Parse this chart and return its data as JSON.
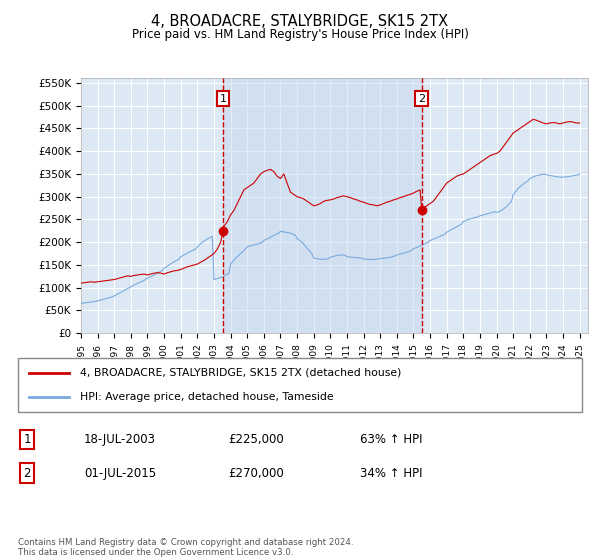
{
  "title": "4, BROADACRE, STALYBRIDGE, SK15 2TX",
  "subtitle": "Price paid vs. HM Land Registry's House Price Index (HPI)",
  "ylim": [
    0,
    560000
  ],
  "yticks": [
    0,
    50000,
    100000,
    150000,
    200000,
    250000,
    300000,
    350000,
    400000,
    450000,
    500000,
    550000
  ],
  "ytick_labels": [
    "£0",
    "£50K",
    "£100K",
    "£150K",
    "£200K",
    "£250K",
    "£300K",
    "£350K",
    "£400K",
    "£450K",
    "£500K",
    "£550K"
  ],
  "xlim_start": 1995.0,
  "xlim_end": 2025.5,
  "background_color": "#ffffff",
  "plot_bg_color": "#dce9f5",
  "grid_color": "#ffffff",
  "shade_color": "#c8d8ee",
  "red_line_color": "#cc0000",
  "blue_line_color": "#7aaadd",
  "sale1_x": 2003.54,
  "sale1_y": 225000,
  "sale1_label": "1",
  "sale1_date": "18-JUL-2003",
  "sale1_price": "£225,000",
  "sale1_hpi": "63% ↑ HPI",
  "sale2_x": 2015.5,
  "sale2_y": 270000,
  "sale2_label": "2",
  "sale2_date": "01-JUL-2015",
  "sale2_price": "£270,000",
  "sale2_hpi": "34% ↑ HPI",
  "legend_line1": "4, BROADACRE, STALYBRIDGE, SK15 2TX (detached house)",
  "legend_line2": "HPI: Average price, detached house, Tameside",
  "footer": "Contains HM Land Registry data © Crown copyright and database right 2024.\nThis data is licensed under the Open Government Licence v3.0.",
  "hpi_x": [
    1995.0,
    1995.1,
    1995.2,
    1995.3,
    1995.4,
    1995.5,
    1995.6,
    1995.7,
    1995.8,
    1995.9,
    1996.0,
    1996.1,
    1996.2,
    1996.3,
    1996.4,
    1996.5,
    1996.6,
    1996.7,
    1996.8,
    1996.9,
    1997.0,
    1997.1,
    1997.2,
    1997.3,
    1997.4,
    1997.5,
    1997.6,
    1997.7,
    1997.8,
    1997.9,
    1998.0,
    1998.2,
    1998.5,
    1998.8,
    1999.0,
    1999.3,
    1999.6,
    1999.9,
    2000.0,
    2000.3,
    2000.6,
    2000.9,
    2001.0,
    2001.3,
    2001.6,
    2001.9,
    2002.0,
    2002.3,
    2002.6,
    2002.9,
    2003.0,
    2003.3,
    2003.54,
    2003.7,
    2003.9,
    2004.0,
    2004.3,
    2004.6,
    2004.9,
    2005.0,
    2005.3,
    2005.6,
    2005.9,
    2006.0,
    2006.3,
    2006.6,
    2006.9,
    2007.0,
    2007.3,
    2007.6,
    2007.9,
    2008.0,
    2008.3,
    2008.6,
    2008.9,
    2009.0,
    2009.3,
    2009.6,
    2009.9,
    2010.0,
    2010.3,
    2010.6,
    2010.9,
    2011.0,
    2011.3,
    2011.6,
    2011.9,
    2012.0,
    2012.3,
    2012.6,
    2012.9,
    2013.0,
    2013.3,
    2013.6,
    2013.9,
    2014.0,
    2014.3,
    2014.6,
    2014.9,
    2015.0,
    2015.3,
    2015.5,
    2015.7,
    2015.9,
    2016.0,
    2016.3,
    2016.6,
    2016.9,
    2017.0,
    2017.3,
    2017.6,
    2017.9,
    2018.0,
    2018.3,
    2018.6,
    2018.9,
    2019.0,
    2019.3,
    2019.6,
    2019.9,
    2020.0,
    2020.3,
    2020.6,
    2020.9,
    2021.0,
    2021.3,
    2021.6,
    2021.9,
    2022.0,
    2022.3,
    2022.6,
    2022.9,
    2023.0,
    2023.3,
    2023.6,
    2023.9,
    2024.0,
    2024.3,
    2024.6,
    2024.9,
    2025.0
  ],
  "hpi_y": [
    65000,
    66000,
    66500,
    67000,
    67500,
    68000,
    68500,
    69000,
    69500,
    70000,
    71000,
    72000,
    73000,
    74000,
    75000,
    76000,
    77000,
    78000,
    79000,
    80000,
    82000,
    84000,
    86000,
    88000,
    90000,
    92000,
    94000,
    96000,
    98000,
    100000,
    102000,
    106000,
    111000,
    116000,
    121000,
    126000,
    132000,
    138000,
    143000,
    150000,
    157000,
    163000,
    168000,
    174000,
    180000,
    185000,
    190000,
    200000,
    207000,
    213000,
    118000,
    121000,
    124000,
    128000,
    132000,
    152000,
    165000,
    175000,
    185000,
    190000,
    193000,
    196000,
    200000,
    204000,
    209000,
    215000,
    220000,
    224000,
    222000,
    220000,
    215000,
    208000,
    200000,
    187000,
    174000,
    165000,
    163000,
    162000,
    164000,
    167000,
    170000,
    172000,
    171000,
    168000,
    167000,
    166000,
    165000,
    163000,
    162000,
    162000,
    163000,
    164000,
    165000,
    167000,
    170000,
    172000,
    175000,
    178000,
    182000,
    186000,
    190000,
    194000,
    197000,
    200000,
    204000,
    208000,
    213000,
    218000,
    222000,
    228000,
    234000,
    240000,
    245000,
    250000,
    253000,
    256000,
    258000,
    261000,
    264000,
    267000,
    265000,
    270000,
    278000,
    290000,
    305000,
    318000,
    328000,
    335000,
    340000,
    345000,
    348000,
    350000,
    348000,
    346000,
    344000,
    343000,
    343000,
    344000,
    346000,
    348000,
    350000
  ],
  "red_x": [
    1995.0,
    1995.2,
    1995.4,
    1995.6,
    1995.8,
    1996.0,
    1996.2,
    1996.4,
    1996.6,
    1996.8,
    1997.0,
    1997.2,
    1997.4,
    1997.6,
    1997.8,
    1998.0,
    1998.2,
    1998.4,
    1998.6,
    1998.8,
    1999.0,
    1999.2,
    1999.4,
    1999.6,
    1999.8,
    2000.0,
    2000.2,
    2000.4,
    2000.6,
    2000.8,
    2001.0,
    2001.2,
    2001.4,
    2001.6,
    2001.8,
    2002.0,
    2002.2,
    2002.4,
    2002.6,
    2002.8,
    2003.0,
    2003.2,
    2003.4,
    2003.54,
    2003.6,
    2003.8,
    2004.0,
    2004.2,
    2004.4,
    2004.6,
    2004.8,
    2005.0,
    2005.2,
    2005.4,
    2005.6,
    2005.8,
    2006.0,
    2006.2,
    2006.4,
    2006.6,
    2006.8,
    2007.0,
    2007.1,
    2007.2,
    2007.3,
    2007.4,
    2007.5,
    2007.6,
    2007.8,
    2008.0,
    2008.2,
    2008.4,
    2008.6,
    2008.8,
    2009.0,
    2009.2,
    2009.4,
    2009.6,
    2009.8,
    2010.0,
    2010.2,
    2010.4,
    2010.6,
    2010.8,
    2011.0,
    2011.2,
    2011.4,
    2011.6,
    2011.8,
    2012.0,
    2012.2,
    2012.4,
    2012.6,
    2012.8,
    2013.0,
    2013.2,
    2013.4,
    2013.6,
    2013.8,
    2014.0,
    2014.2,
    2014.4,
    2014.6,
    2014.8,
    2015.0,
    2015.2,
    2015.4,
    2015.5,
    2015.6,
    2015.8,
    2016.0,
    2016.2,
    2016.4,
    2016.6,
    2016.8,
    2017.0,
    2017.2,
    2017.4,
    2017.6,
    2017.8,
    2018.0,
    2018.2,
    2018.4,
    2018.6,
    2018.8,
    2019.0,
    2019.2,
    2019.4,
    2019.6,
    2019.8,
    2020.0,
    2020.2,
    2020.4,
    2020.6,
    2020.8,
    2021.0,
    2021.2,
    2021.4,
    2021.6,
    2021.8,
    2022.0,
    2022.2,
    2022.4,
    2022.6,
    2022.8,
    2023.0,
    2023.2,
    2023.4,
    2023.6,
    2023.8,
    2024.0,
    2024.2,
    2024.4,
    2024.6,
    2024.8,
    2025.0
  ],
  "red_y": [
    110000,
    111000,
    112000,
    113000,
    112000,
    113000,
    114000,
    115000,
    116000,
    117000,
    118000,
    120000,
    122000,
    124000,
    126000,
    125000,
    127000,
    128000,
    129000,
    130000,
    128000,
    130000,
    132000,
    133000,
    132000,
    130000,
    133000,
    135000,
    137000,
    138000,
    140000,
    143000,
    146000,
    148000,
    150000,
    152000,
    156000,
    160000,
    165000,
    170000,
    175000,
    185000,
    200000,
    225000,
    235000,
    245000,
    260000,
    270000,
    285000,
    300000,
    315000,
    320000,
    325000,
    330000,
    340000,
    350000,
    355000,
    358000,
    360000,
    355000,
    345000,
    340000,
    345000,
    350000,
    340000,
    330000,
    320000,
    310000,
    305000,
    300000,
    298000,
    295000,
    290000,
    285000,
    280000,
    282000,
    285000,
    290000,
    292000,
    293000,
    295000,
    298000,
    300000,
    302000,
    300000,
    298000,
    295000,
    293000,
    290000,
    288000,
    285000,
    283000,
    282000,
    280000,
    282000,
    285000,
    288000,
    290000,
    293000,
    295000,
    298000,
    300000,
    303000,
    305000,
    308000,
    312000,
    315000,
    270000,
    275000,
    280000,
    285000,
    290000,
    300000,
    310000,
    320000,
    330000,
    335000,
    340000,
    345000,
    348000,
    350000,
    355000,
    360000,
    365000,
    370000,
    375000,
    380000,
    385000,
    390000,
    393000,
    395000,
    400000,
    410000,
    420000,
    430000,
    440000,
    445000,
    450000,
    455000,
    460000,
    465000,
    470000,
    468000,
    465000,
    462000,
    460000,
    462000,
    463000,
    462000,
    460000,
    462000,
    464000,
    465000,
    464000,
    462000,
    462000
  ]
}
